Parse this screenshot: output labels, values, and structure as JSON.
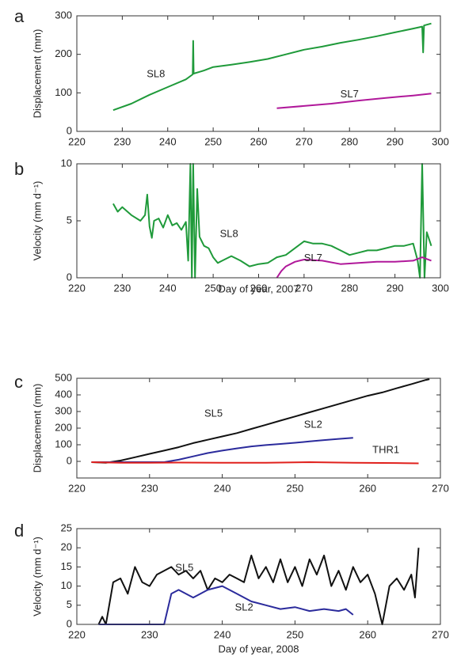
{
  "chart_data": [
    {
      "type": "line",
      "panel_label": "a",
      "y_label": "Displacement (mm)",
      "xlim": [
        220,
        300
      ],
      "xticks": [
        220,
        230,
        240,
        250,
        260,
        270,
        280,
        290,
        300
      ],
      "ylim": [
        0,
        300
      ],
      "yticks": [
        0,
        100,
        200,
        300
      ],
      "series": [
        {
          "name": "SL8",
          "color": "#1f9a3a",
          "x": [
            228,
            232,
            236,
            240,
            244,
            245.5,
            245.6,
            245.7,
            248,
            250,
            254,
            258,
            262,
            266,
            270,
            274,
            278,
            282,
            286,
            290,
            294,
            296,
            296.2,
            296.4,
            298
          ],
          "values": [
            55,
            72,
            95,
            115,
            135,
            148,
            235,
            150,
            158,
            167,
            173,
            180,
            188,
            200,
            212,
            220,
            230,
            238,
            247,
            257,
            267,
            272,
            205,
            275,
            280
          ]
        },
        {
          "name": "SL7",
          "color": "#b0189a",
          "x": [
            264,
            270,
            276,
            282,
            288,
            294,
            298
          ],
          "values": [
            60,
            66,
            72,
            80,
            87,
            93,
            98
          ]
        }
      ]
    },
    {
      "type": "line",
      "panel_label": "b",
      "y_label": "Velocity (mm d⁻¹)",
      "x_label": "Day of year, 2007",
      "xlim": [
        220,
        300
      ],
      "xticks": [
        220,
        230,
        240,
        250,
        260,
        270,
        280,
        290,
        300
      ],
      "ylim": [
        0,
        10
      ],
      "yticks": [
        0,
        5,
        10
      ],
      "series": [
        {
          "name": "SL8",
          "color": "#1f9a3a",
          "x": [
            228,
            229,
            230,
            232,
            234,
            235,
            235.5,
            236,
            236.5,
            237,
            238,
            239,
            240,
            241,
            242,
            243,
            244,
            244.5,
            245,
            245.3,
            245.6,
            246,
            246.5,
            247,
            248,
            249,
            250,
            251,
            252,
            254,
            256,
            258,
            260,
            262,
            264,
            266,
            268,
            270,
            272,
            274,
            276,
            278,
            280,
            282,
            284,
            286,
            288,
            290,
            292,
            294,
            295,
            295.5,
            296,
            296.5,
            297,
            298
          ],
          "values": [
            6.5,
            5.8,
            6.2,
            5.5,
            5.0,
            5.5,
            7.3,
            4.5,
            3.5,
            5.0,
            5.2,
            4.4,
            5.5,
            4.6,
            4.8,
            4.2,
            4.9,
            1.5,
            10,
            0,
            10,
            0,
            7.8,
            3.6,
            2.8,
            2.6,
            1.8,
            1.3,
            1.5,
            1.9,
            1.5,
            1.0,
            1.2,
            1.3,
            1.8,
            2.0,
            2.6,
            3.2,
            3.0,
            3.0,
            2.8,
            2.4,
            2.0,
            2.2,
            2.4,
            2.4,
            2.6,
            2.8,
            2.8,
            3.0,
            1.5,
            0,
            10,
            0,
            4.0,
            2.8
          ]
        },
        {
          "name": "SL7",
          "color": "#b0189a",
          "x": [
            264,
            265,
            266,
            268,
            270,
            274,
            278,
            282,
            286,
            290,
            294,
            296,
            298
          ],
          "values": [
            0,
            0.6,
            1.0,
            1.4,
            1.6,
            1.5,
            1.2,
            1.3,
            1.4,
            1.4,
            1.5,
            1.8,
            1.5
          ]
        }
      ]
    },
    {
      "type": "line",
      "panel_label": "c",
      "y_label": "Displacement (mm)",
      "xlim": [
        220,
        270
      ],
      "xticks": [
        220,
        230,
        240,
        250,
        260,
        270
      ],
      "ylim": [
        -100,
        500
      ],
      "yticks": [
        0,
        100,
        200,
        300,
        400,
        500
      ],
      "series": [
        {
          "name": "SL5",
          "color": "#111111",
          "x": [
            222,
            224,
            226,
            228,
            230,
            232,
            234,
            236,
            238,
            240,
            242,
            244,
            246,
            248,
            250,
            252,
            254,
            256,
            258,
            260,
            262,
            264,
            266,
            268,
            268.5
          ],
          "values": [
            -5,
            -8,
            5,
            25,
            45,
            65,
            85,
            110,
            130,
            150,
            170,
            195,
            220,
            245,
            270,
            295,
            320,
            345,
            370,
            395,
            415,
            440,
            465,
            490,
            495
          ]
        },
        {
          "name": "SL2",
          "color": "#2b2b9c",
          "x": [
            222,
            226,
            232,
            234,
            236,
            238,
            240,
            242,
            244,
            246,
            248,
            250,
            252,
            254,
            256,
            258
          ],
          "values": [
            -5,
            -5,
            -5,
            10,
            30,
            50,
            65,
            78,
            90,
            98,
            105,
            112,
            120,
            128,
            135,
            142
          ]
        },
        {
          "name": "THR1",
          "color": "#e0201c",
          "x": [
            222,
            226,
            230,
            234,
            240,
            246,
            252,
            258,
            264,
            267
          ],
          "values": [
            -5,
            -8,
            -8,
            -7,
            -8,
            -8,
            -5,
            -8,
            -10,
            -12
          ]
        }
      ]
    },
    {
      "type": "line",
      "panel_label": "d",
      "y_label": "Velocity (mm d⁻¹)",
      "x_label": "Day of year, 2008",
      "xlim": [
        220,
        270
      ],
      "xticks": [
        220,
        230,
        240,
        250,
        260,
        270
      ],
      "ylim": [
        0,
        25
      ],
      "yticks": [
        0,
        5,
        10,
        15,
        20,
        25
      ],
      "series": [
        {
          "name": "SL5",
          "color": "#111111",
          "x": [
            223,
            223.5,
            224,
            225,
            226,
            227,
            228,
            229,
            230,
            231,
            232,
            233,
            234,
            235,
            236,
            237,
            238,
            239,
            240,
            241,
            242,
            243,
            244,
            245,
            246,
            247,
            248,
            249,
            250,
            251,
            252,
            253,
            254,
            255,
            256,
            257,
            258,
            259,
            260,
            261,
            262,
            263,
            264,
            265,
            266,
            266.5,
            267
          ],
          "values": [
            0,
            2,
            0,
            11,
            12,
            8,
            15,
            11,
            10,
            13,
            14,
            15,
            13,
            14,
            12,
            14,
            9,
            12,
            11,
            13,
            12,
            11,
            18,
            12,
            15,
            11,
            17,
            11,
            15,
            10,
            17,
            13,
            18,
            10,
            14,
            9,
            15,
            11,
            13,
            8,
            0,
            10,
            12,
            9,
            13,
            7,
            20
          ]
        },
        {
          "name": "SL2",
          "color": "#2b2b9c",
          "x": [
            223,
            232,
            233,
            234,
            236,
            238,
            240,
            242,
            244,
            246,
            248,
            250,
            252,
            254,
            256,
            257,
            258
          ],
          "values": [
            0,
            0,
            8,
            9,
            7,
            9,
            10,
            8,
            6,
            5,
            4,
            4.5,
            3.5,
            4,
            3.5,
            4,
            2.5
          ]
        }
      ]
    }
  ]
}
